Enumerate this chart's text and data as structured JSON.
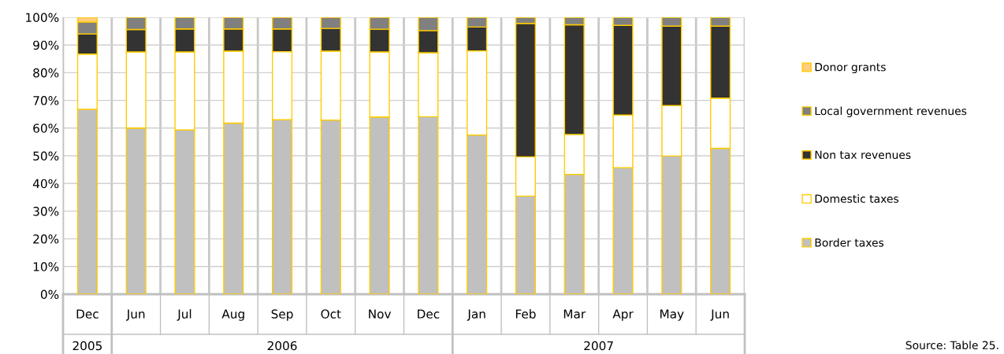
{
  "chart_data": {
    "type": "bar",
    "stacked": true,
    "categories": [
      "Dec",
      "Jun",
      "Jul",
      "Aug",
      "Sep",
      "Oct",
      "Nov",
      "Dec",
      "Jan",
      "Feb",
      "Mar",
      "Apr",
      "May",
      "Jun"
    ],
    "series": [
      {
        "name": "Border taxes",
        "color": "#c0c0c0",
        "values": [
          66.8,
          60,
          59.3,
          61.8,
          63,
          62.9,
          64,
          64.1,
          57.5,
          35.4,
          43.3,
          45.7,
          49.9,
          52.7
        ]
      },
      {
        "name": "Domestic taxes",
        "color": "#ffffff",
        "values": [
          19.9,
          27.5,
          28.2,
          26,
          24.6,
          24.9,
          23.5,
          23.1,
          30.4,
          14.2,
          14.4,
          19,
          18.2,
          18.1
        ]
      },
      {
        "name": "Non tax revenues",
        "color": "#333333",
        "values": [
          7.3,
          8.1,
          8.3,
          8,
          8.2,
          8.2,
          8.2,
          8,
          8.6,
          48.2,
          39.6,
          32.4,
          28.7,
          26
        ]
      },
      {
        "name": "Local government revenues",
        "color": "#808080",
        "values": [
          4.3,
          4.4,
          4.2,
          4.2,
          4.2,
          4,
          4.3,
          4.8,
          3.5,
          2.2,
          2.7,
          2.9,
          3.2,
          3.2
        ]
      },
      {
        "name": "Donor grants",
        "color": "#ffcc80",
        "values": [
          1.7,
          0,
          0,
          0,
          0,
          0,
          0,
          0,
          0,
          0,
          0,
          0,
          0,
          0
        ]
      }
    ],
    "ylim": [
      0,
      100
    ],
    "yticks": [
      {
        "value": 0,
        "label": "0%"
      },
      {
        "value": 10,
        "label": "10%"
      },
      {
        "value": 20,
        "label": "20%"
      },
      {
        "value": 30,
        "label": "30%"
      },
      {
        "value": 40,
        "label": "40%"
      },
      {
        "value": 50,
        "label": "50%"
      },
      {
        "value": 60,
        "label": "60%"
      },
      {
        "value": 70,
        "label": "70%"
      },
      {
        "value": 80,
        "label": "80%"
      },
      {
        "value": 90,
        "label": "90%"
      },
      {
        "value": 100,
        "label": "100%"
      }
    ],
    "grid": true,
    "legend": "right",
    "annotations": [
      "2005",
      "2006",
      "2007",
      "Source: Table 25."
    ]
  }
}
